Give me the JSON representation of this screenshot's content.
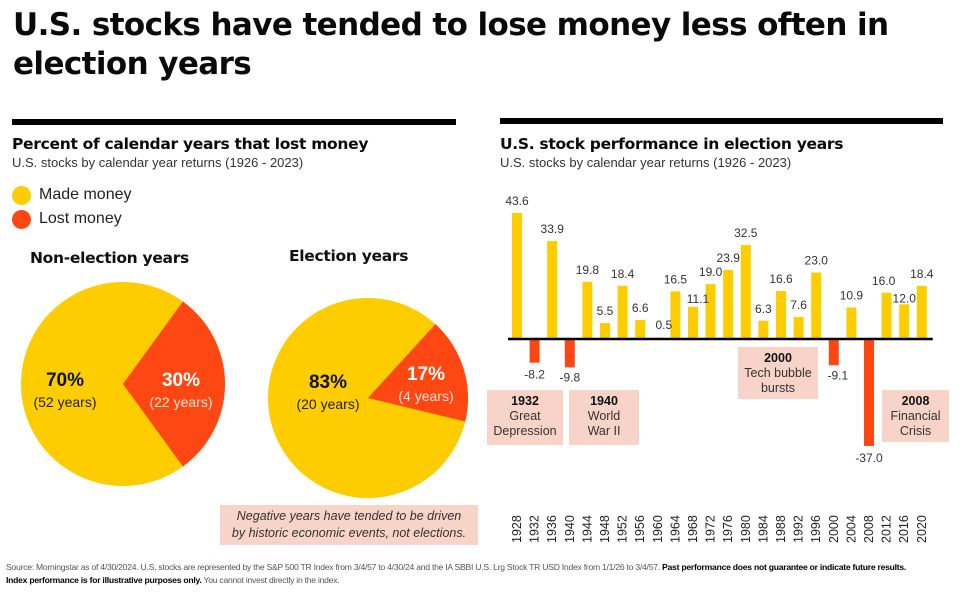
{
  "headline": "U.S. stocks have tended to lose money less often in election years",
  "left_panel": {
    "title": "Percent of calendar years that lost money",
    "subtitle": "U.S. stocks by calendar year returns (1926 - 2023)",
    "legend": [
      {
        "label": "Made money",
        "color": "#fecd00"
      },
      {
        "label": "Lost money",
        "color": "#ff4713"
      }
    ],
    "note_line1": "Negative years have tended to be driven",
    "note_line2": "by historic economic events, not elections."
  },
  "right_panel": {
    "title": "U.S. stock performance in election years",
    "subtitle": "U.S. stocks by calendar year returns (1926 - 2023)"
  },
  "colors": {
    "positive": "#fecd00",
    "negative": "#ff4713",
    "annotation_bg": "#f8d3c8"
  },
  "chart_data": [
    {
      "type": "pie",
      "title": "Non-election years",
      "slices": [
        {
          "name": "Made money",
          "value": 70,
          "label": "70%",
          "sublabel": "(52 years)",
          "color": "#fecd00"
        },
        {
          "name": "Lost money",
          "value": 30,
          "label": "30%",
          "sublabel": "(22 years)",
          "color": "#ff4713"
        }
      ]
    },
    {
      "type": "pie",
      "title": "Election years",
      "slices": [
        {
          "name": "Made money",
          "value": 83,
          "label": "83%",
          "sublabel": "(20 years)",
          "color": "#fecd00"
        },
        {
          "name": "Lost money",
          "value": 17,
          "label": "17%",
          "sublabel": "(4 years)",
          "color": "#ff4713"
        }
      ]
    },
    {
      "type": "bar",
      "title": "U.S. stock performance in election years",
      "subtitle": "U.S. stocks by calendar year returns (1926 - 2023)",
      "categories": [
        "1928",
        "1932",
        "1936",
        "1940",
        "1944",
        "1948",
        "1952",
        "1956",
        "1960",
        "1964",
        "1968",
        "1972",
        "1976",
        "1980",
        "1984",
        "1988",
        "1992",
        "1996",
        "2000",
        "2004",
        "2008",
        "2012",
        "2016",
        "2020"
      ],
      "values": [
        43.6,
        -8.2,
        33.9,
        -9.8,
        19.8,
        5.5,
        18.4,
        6.6,
        0.5,
        16.5,
        11.1,
        19.0,
        23.9,
        32.5,
        6.3,
        16.6,
        7.6,
        23.0,
        -9.1,
        10.9,
        -37.0,
        16.0,
        12.0,
        18.4
      ],
      "value_labels": [
        "43.6",
        "-8.2",
        "33.9",
        "-9.8",
        "19.8",
        "5.5",
        "18.4",
        "6.6",
        "0.5",
        "16.5",
        "11.1",
        "19.0",
        "23.9",
        "32.5",
        "6.3",
        "16.6",
        "7.6",
        "23.0",
        "-9.1",
        "10.9",
        "-37.0",
        "16.0",
        "12.0",
        "18.4"
      ],
      "ylim": [
        -37.0,
        43.6
      ],
      "xlabel": "",
      "ylabel": "",
      "grid": false,
      "legend": "none",
      "annotations": [
        {
          "year": "1932",
          "title": "1932",
          "lines": [
            "Great",
            "Depression"
          ]
        },
        {
          "year": "1940",
          "title": "1940",
          "lines": [
            "World",
            "War II"
          ]
        },
        {
          "year": "2000",
          "title": "2000",
          "lines": [
            "Tech bubble",
            "bursts"
          ]
        },
        {
          "year": "2008",
          "title": "2008",
          "lines": [
            "Financial",
            "Crisis"
          ]
        }
      ]
    }
  ],
  "footnote": {
    "source": "Source: Morningstar as of 4/30/2024. U.S. stocks are represented by the S&P 500 TR Index from 3/4/57 to 4/30/24 and the IA SBBI U.S. Lrg Stock TR USD Index from 1/1/26 to 3/4/57.",
    "bold1": "Past performance does not guarantee or indicate future results.",
    "bold2": "Index performance is for illustrative purposes only.",
    "end": "You cannot invest directly in the index."
  }
}
